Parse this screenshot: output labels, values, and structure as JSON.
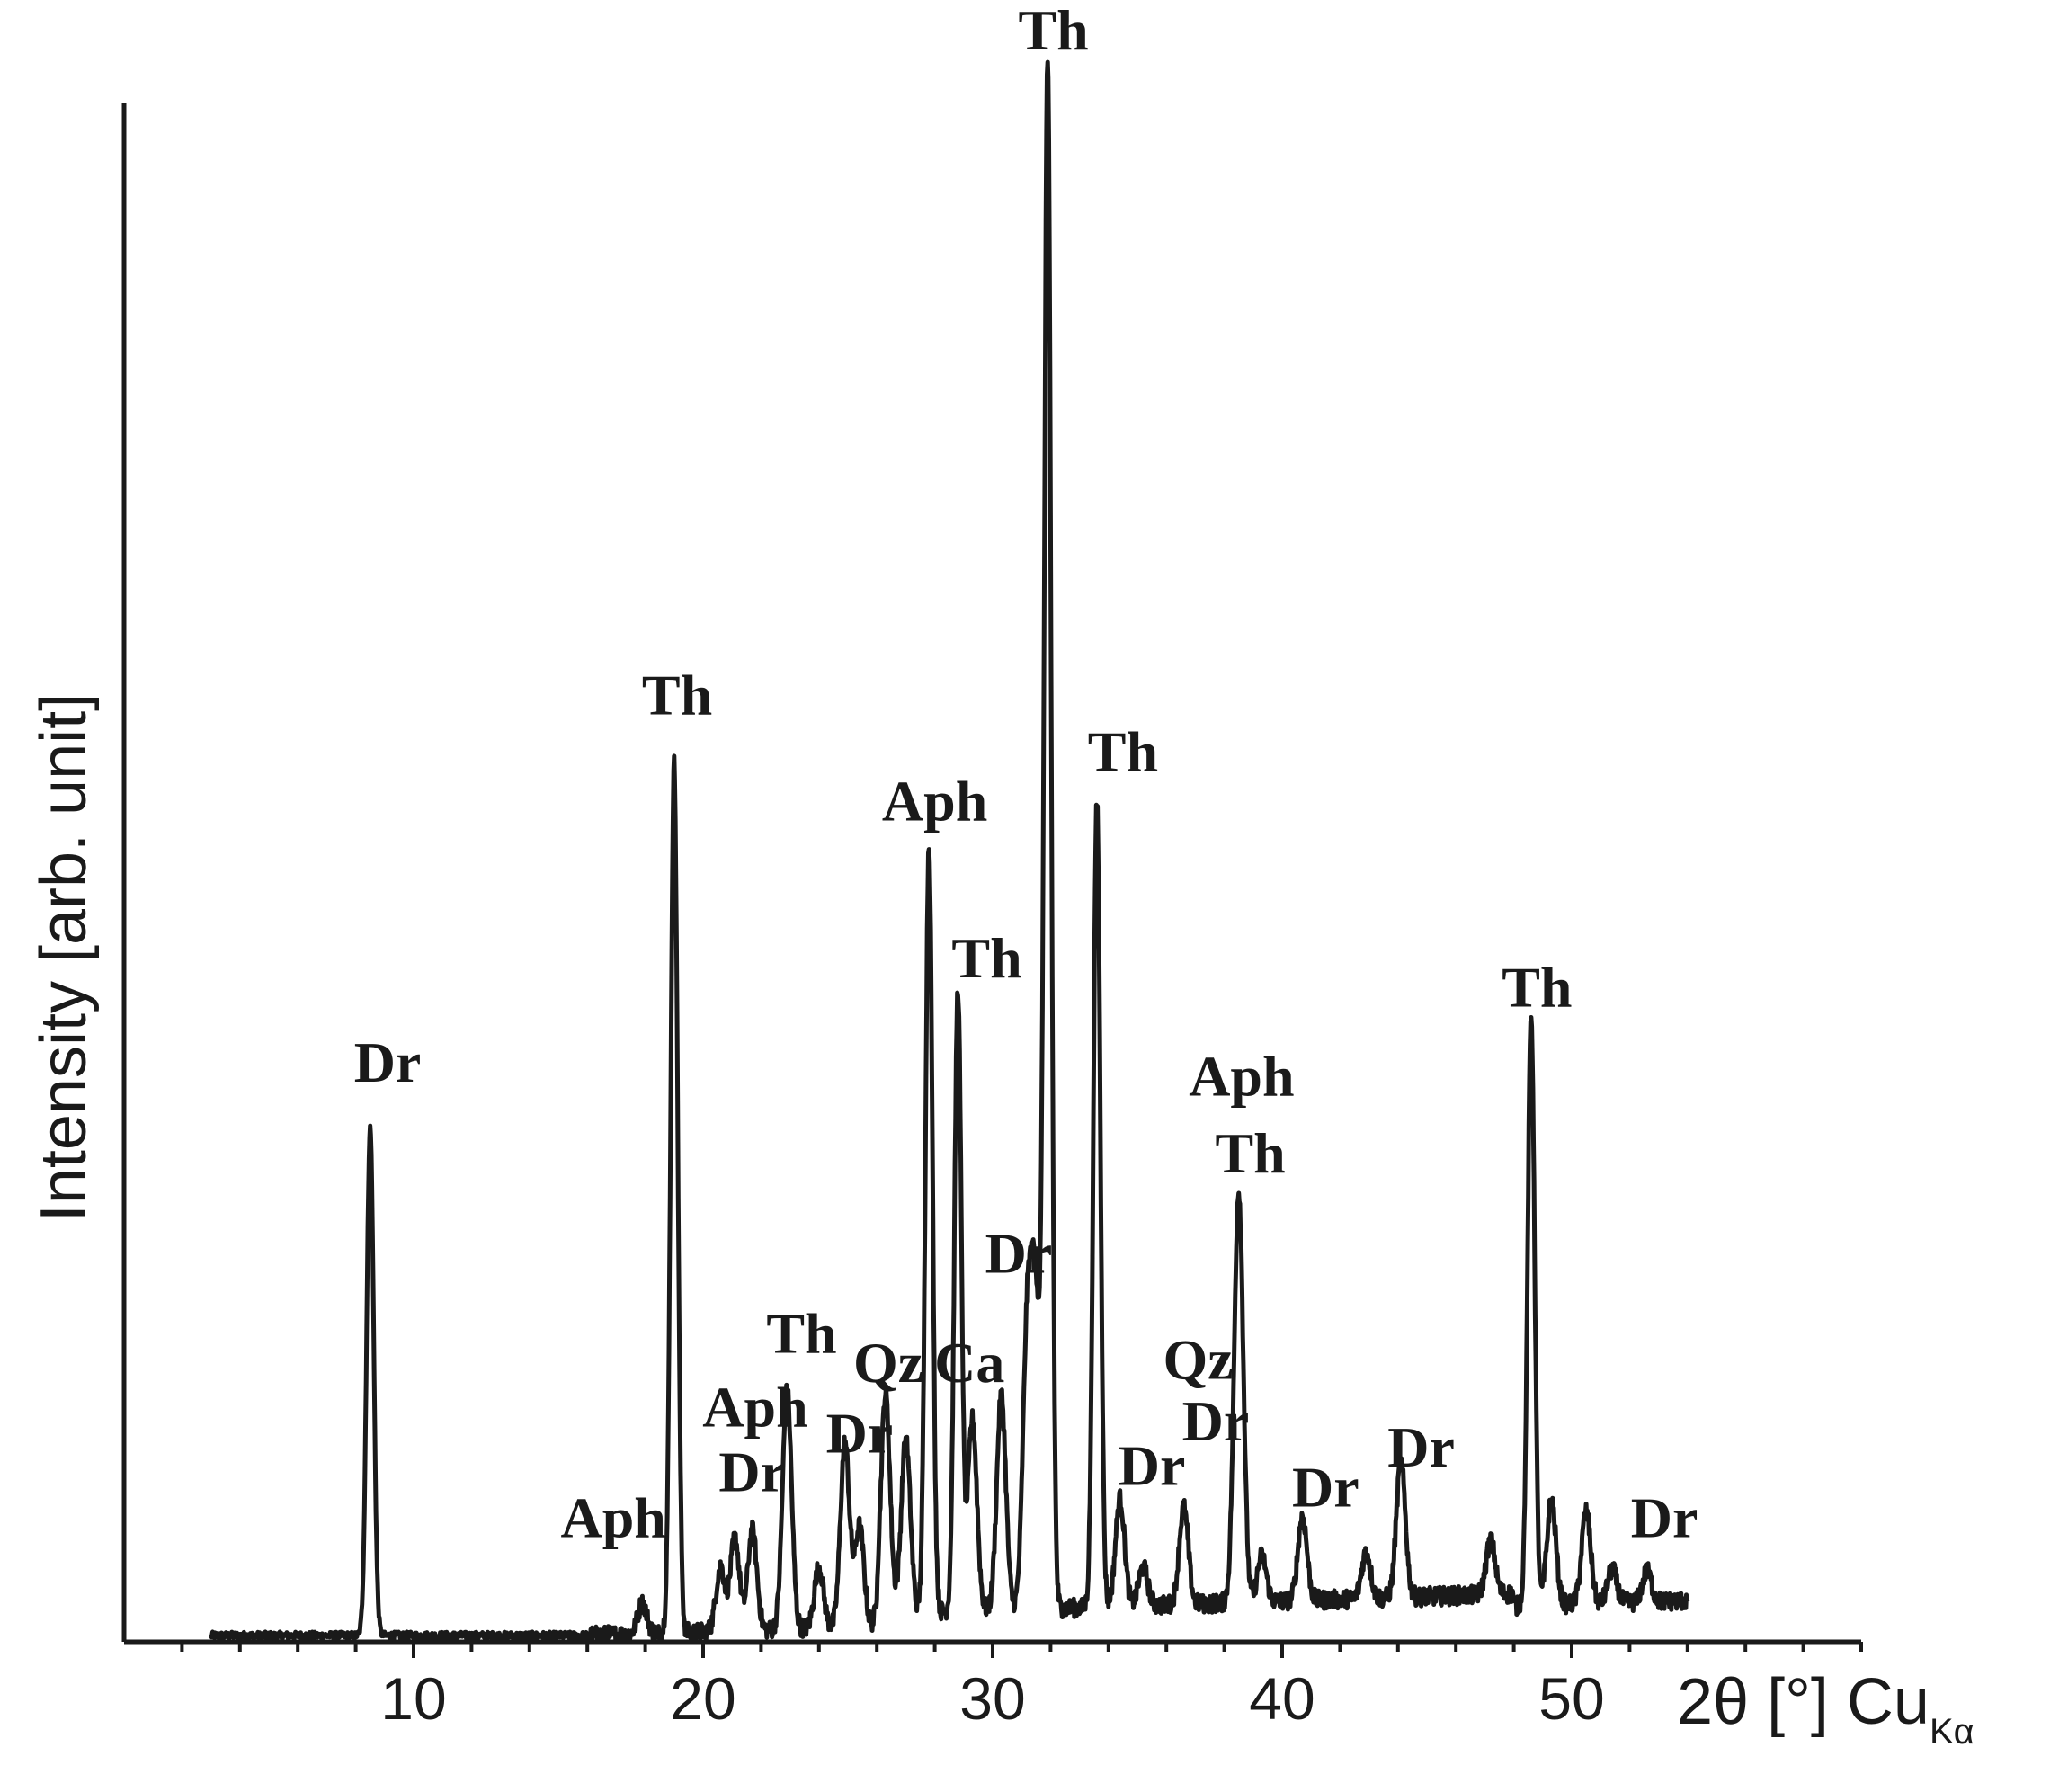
{
  "chart_data": {
    "type": "line",
    "title": "",
    "xlabel": {
      "main": "2θ [°] Cu",
      "subscript": "Kα"
    },
    "ylabel": "Intensity  [arb. unit]",
    "xlim": [
      0,
      60
    ],
    "ylim": [
      0,
      100
    ],
    "xticks": [
      10,
      20,
      30,
      40,
      50
    ],
    "xtick_labels": [
      "10",
      "20",
      "30",
      "40",
      "50"
    ],
    "minor_tick_step": 2,
    "grid": false,
    "legend": "none",
    "line_color": "#1a1a1a",
    "baseline": 0.4,
    "series": [
      {
        "x_range": [
          3,
          54
        ],
        "peaks": [
          {
            "x": 8.5,
            "y": 33.0
          },
          {
            "x": 17.9,
            "y": 2.0
          },
          {
            "x": 19.0,
            "y": 56.5
          },
          {
            "x": 20.6,
            "y": 4.2
          },
          {
            "x": 21.1,
            "y": 6.0
          },
          {
            "x": 21.7,
            "y": 6.5
          },
          {
            "x": 22.9,
            "y": 15.5
          },
          {
            "x": 24.0,
            "y": 4.0
          },
          {
            "x": 24.9,
            "y": 12.0
          },
          {
            "x": 25.4,
            "y": 6.5
          },
          {
            "x": 26.3,
            "y": 14.3
          },
          {
            "x": 27.0,
            "y": 11.3
          },
          {
            "x": 27.8,
            "y": 50.0
          },
          {
            "x": 28.8,
            "y": 40.4
          },
          {
            "x": 29.3,
            "y": 12.5
          },
          {
            "x": 30.3,
            "y": 14.0
          },
          {
            "x": 31.2,
            "y": 18.2
          },
          {
            "x": 31.5,
            "y": 19.0
          },
          {
            "x": 31.9,
            "y": 100.0
          },
          {
            "x": 33.6,
            "y": 52.5
          },
          {
            "x": 34.4,
            "y": 7.0
          },
          {
            "x": 35.2,
            "y": 2.5
          },
          {
            "x": 36.6,
            "y": 6.3
          },
          {
            "x": 38.5,
            "y": 26.8
          },
          {
            "x": 39.3,
            "y": 3.0
          },
          {
            "x": 40.7,
            "y": 5.5
          },
          {
            "x": 42.9,
            "y": 3.0
          },
          {
            "x": 44.1,
            "y": 8.8
          },
          {
            "x": 47.2,
            "y": 3.5
          },
          {
            "x": 48.6,
            "y": 38.3
          },
          {
            "x": 49.3,
            "y": 6.8
          },
          {
            "x": 50.5,
            "y": 6.0
          },
          {
            "x": 51.4,
            "y": 2.2
          },
          {
            "x": 52.6,
            "y": 2.0
          }
        ]
      }
    ],
    "annotations": [
      {
        "text": "Dr",
        "x": 9.1,
        "y": 36.4
      },
      {
        "text": "Th",
        "x": 19.1,
        "y": 60.3
      },
      {
        "text": "Aph",
        "x": 16.9,
        "y": 6.8
      },
      {
        "text": "Aph",
        "x": 21.8,
        "y": 14.0
      },
      {
        "text": "Dr",
        "x": 21.7,
        "y": 9.8
      },
      {
        "text": "Th",
        "x": 23.4,
        "y": 18.8
      },
      {
        "text": "Dr",
        "x": 25.4,
        "y": 12.3
      },
      {
        "text": "Qz",
        "x": 26.4,
        "y": 16.9
      },
      {
        "text": "Aph",
        "x": 28.0,
        "y": 53.4
      },
      {
        "text": "Th",
        "x": 29.8,
        "y": 43.2
      },
      {
        "text": "Ca",
        "x": 29.2,
        "y": 16.9
      },
      {
        "text": "Dr",
        "x": 30.9,
        "y": 24.0
      },
      {
        "text": "Th",
        "x": 32.1,
        "y": 103.5
      },
      {
        "text": "Th",
        "x": 34.5,
        "y": 56.6
      },
      {
        "text": "Dr",
        "x": 35.5,
        "y": 10.2
      },
      {
        "text": "Qz",
        "x": 37.1,
        "y": 17.1
      },
      {
        "text": "Dr",
        "x": 37.7,
        "y": 13.1
      },
      {
        "text": "Aph",
        "x": 38.6,
        "y": 35.5
      },
      {
        "text": "Th",
        "x": 38.9,
        "y": 30.5
      },
      {
        "text": "Dr",
        "x": 41.5,
        "y": 8.8
      },
      {
        "text": "Dr",
        "x": 44.8,
        "y": 11.4
      },
      {
        "text": "Th",
        "x": 48.8,
        "y": 41.3
      },
      {
        "text": "Dr",
        "x": 53.2,
        "y": 6.8
      }
    ]
  }
}
